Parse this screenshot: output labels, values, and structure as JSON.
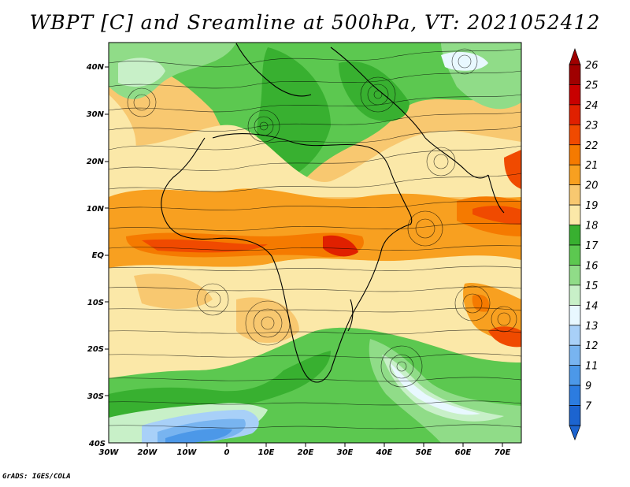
{
  "title": "WBPT [C] and Sreamline at 500hPa, VT: 2021052412",
  "credit": "GrADS: IGES/COLA",
  "axes": {
    "lat_labels": [
      "40N",
      "30N",
      "20N",
      "10N",
      "EQ",
      "10S",
      "20S",
      "30S",
      "40S"
    ],
    "lon_labels": [
      "30W",
      "20W",
      "10W",
      "0",
      "10E",
      "20E",
      "30E",
      "40E",
      "50E",
      "60E",
      "70E"
    ]
  },
  "colorbar": {
    "levels": [
      "26",
      "25",
      "24",
      "23",
      "22",
      "21",
      "20",
      "19",
      "18",
      "17",
      "16",
      "15",
      "14",
      "13",
      "12",
      "11",
      "9",
      "7"
    ],
    "colors": [
      "#a00000",
      "#c80000",
      "#e02000",
      "#f04a00",
      "#f57a00",
      "#f8a020",
      "#f8c870",
      "#fbe8a8",
      "#38b030",
      "#5cc850",
      "#90dc88",
      "#c8f0c8",
      "#e8f8ff",
      "#a8d0f8",
      "#78b4f0",
      "#4c98e8",
      "#2c7ce0",
      "#1c64d0"
    ]
  },
  "legend_field": "WBPT [C]"
}
